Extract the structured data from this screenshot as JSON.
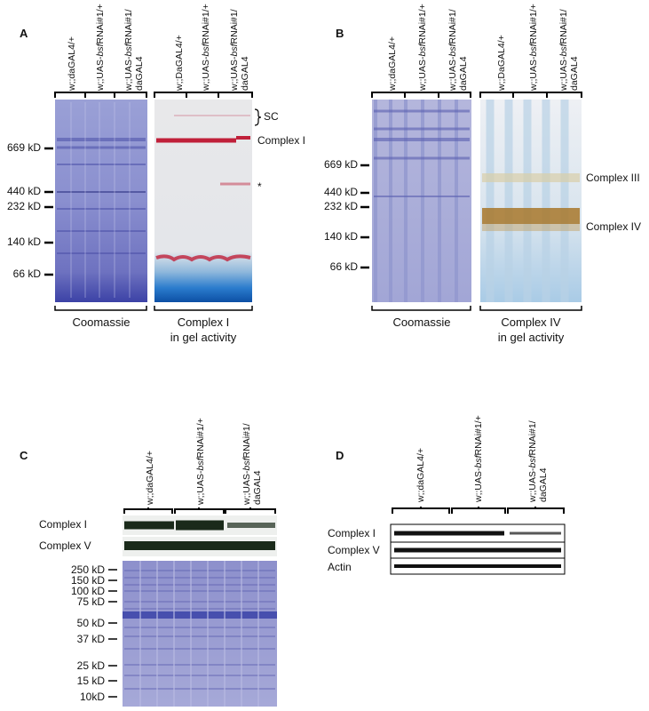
{
  "panels": {
    "A": {
      "letter": "A",
      "mw": [
        "669 kD",
        "440 kD",
        "232 kD",
        "140 kD",
        "66 kD"
      ],
      "lanes": [
        {
          "pre": "w;;daGAL4/+",
          "it": "",
          "post": ""
        },
        {
          "pre": "w;;UAS-",
          "it": "bsf",
          "post": "RNAi#1/+"
        },
        {
          "pre": "w;;UAS-",
          "it": "bsf",
          "post": "RNAi#1/",
          "line2": "daGAL4"
        },
        {
          "pre": "w;;DaGAL4/+",
          "it": "",
          "post": ""
        },
        {
          "pre": "w;;UAS-",
          "it": "bsf",
          "post": "RNAi#1/+"
        },
        {
          "pre": "w;;UAS-",
          "it": "bsf",
          "post": "RNAi#1/",
          "line2": "daGAL4"
        }
      ],
      "right_labels": {
        "sc": "SC",
        "complex1": "Complex I",
        "asterisk": "*"
      },
      "captions": {
        "left": "Coomassie",
        "right_l1": "Complex I",
        "right_l2": "in gel activity"
      }
    },
    "B": {
      "letter": "B",
      "mw": [
        "669 kD",
        "440 kD",
        "232 kD",
        "140 kD",
        "66 kD"
      ],
      "lanes": [
        {
          "pre": "w;;daGAL4/+",
          "it": "",
          "post": ""
        },
        {
          "pre": "w;;UAS-",
          "it": "bsf",
          "post": "RNAi#1/+"
        },
        {
          "pre": "w;;UAS-",
          "it": "bsf",
          "post": "RNAi#1/",
          "line2": "daGAL4"
        },
        {
          "pre": "w;;DaGAL4/+",
          "it": "",
          "post": ""
        },
        {
          "pre": "w;;UAS-",
          "it": "bsf",
          "post": "RNAi#1/+"
        },
        {
          "pre": "w;;UAS-",
          "it": "bsf",
          "post": "RNAi#1/",
          "line2": "daGAL4"
        }
      ],
      "right_labels": {
        "complex3": "Complex III",
        "complex4": "Complex IV"
      },
      "captions": {
        "left": "Coomassie",
        "right_l1": "Complex IV",
        "right_l2": "in gel activity"
      }
    },
    "C": {
      "letter": "C",
      "lanes": [
        {
          "pre": "w;;daGAL4/+",
          "it": "",
          "post": ""
        },
        {
          "pre": "w;;UAS-",
          "it": "bsf",
          "post": "RNAi#1/+"
        },
        {
          "pre": "w;;UAS-",
          "it": "bsf",
          "post": "RNAi#1/",
          "line2": "daGAL4"
        }
      ],
      "blots": [
        "Complex I",
        "Complex V"
      ],
      "mw": [
        "250 kD",
        "150 kD",
        "100 kD",
        "75 kD",
        "50 kD",
        "37 kD",
        "25 kD",
        "15 kD",
        "10kD"
      ]
    },
    "D": {
      "letter": "D",
      "lanes": [
        {
          "pre": "w;;daGAL4/+",
          "it": "",
          "post": ""
        },
        {
          "pre": "w;;UAS-",
          "it": "bsf",
          "post": "RNAi#1/+"
        },
        {
          "pre": "w;;UAS-",
          "it": "bsf",
          "post": "RNAi#1/",
          "line2": "daGAL4"
        }
      ],
      "blots": [
        "Complex I",
        "Complex V",
        "Actin"
      ]
    }
  },
  "colors": {
    "coomassie": "#7a7fc4",
    "coomassie_dark": "#5a5fb0",
    "complex1_band": "#c0203a",
    "blue_front": "#1b6fc0",
    "complex4_band": "#a8782a",
    "gel_light": "#dfe3ee"
  }
}
